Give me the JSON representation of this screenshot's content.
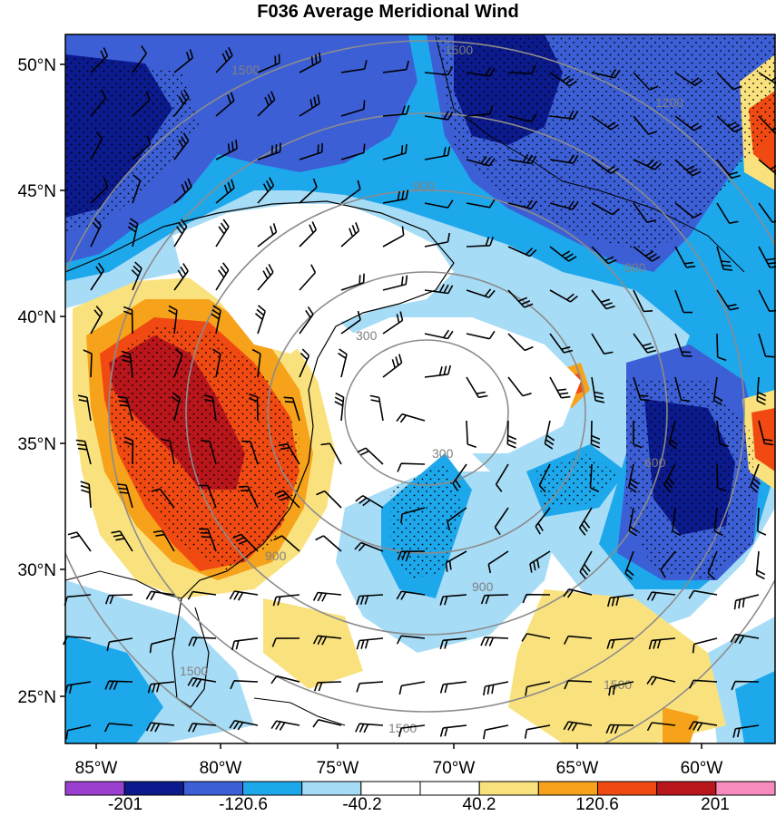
{
  "title": "F036 Average Meridional Wind",
  "lat_labels": [
    "50°N",
    "45°N",
    "40°N",
    "35°N",
    "30°N",
    "25°N"
  ],
  "lon_labels": [
    "85°W",
    "80°W",
    "75°W",
    "70°W",
    "65°W",
    "60°W"
  ],
  "colorbar": {
    "colors": [
      "#9b3fd1",
      "#0b1a8c",
      "#3c5fd6",
      "#1ea8ec",
      "#a7dcf6",
      "#ffffff",
      "#ffffff",
      "#f9e27e",
      "#f6a21a",
      "#f04a12",
      "#b8161b",
      "#f78bbd"
    ],
    "tick_labels": [
      "-201",
      "-120.6",
      "-40.2",
      "40.2",
      "120.6",
      "201"
    ]
  },
  "contour_labels": [
    "1500",
    "1500",
    "1200",
    "900",
    "900",
    "600",
    "300",
    "300",
    "900",
    "900",
    "1500",
    "1500",
    "1500"
  ],
  "colors": {
    "dark_blue": "#0b1a8c",
    "mid_blue": "#3c5fd6",
    "light_blue": "#1ea8ec",
    "pale_blue": "#a7dcf6",
    "yellow": "#f9e27e",
    "orange": "#f6a21a",
    "red": "#f04a12",
    "dark_red": "#b8161b",
    "contour_gray": "#808080"
  }
}
